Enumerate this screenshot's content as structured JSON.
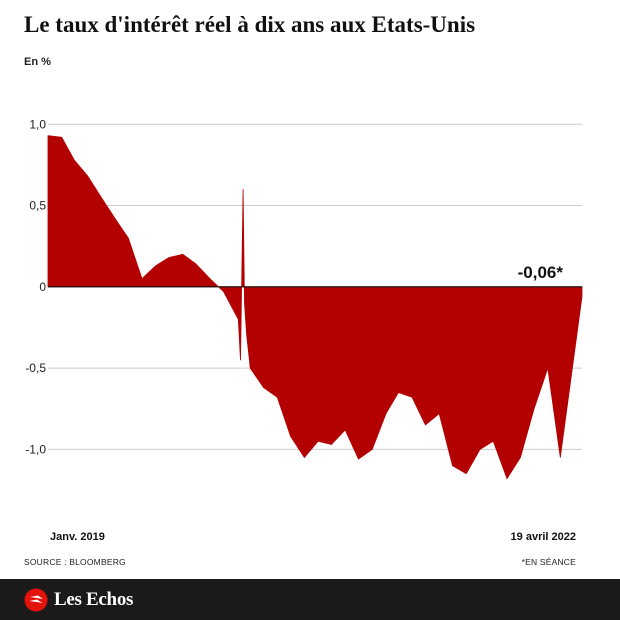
{
  "title": "Le taux d'intérêt réel à dix ans aux Etats-Unis",
  "unit_label": "En %",
  "x_axis": {
    "first_label": "Janv. 2019",
    "last_label": "19 avril 2022"
  },
  "source": "SOURCE : BLOOMBERG",
  "footnote": "*EN SÉANCE",
  "brand": {
    "name": "Les Echos",
    "icon": "les-echos-logo-icon"
  },
  "colors": {
    "area": "#b30000",
    "grid": "#cccccc",
    "baseline": "#111111",
    "footer": "#1a1a1a"
  },
  "chart_data": {
    "type": "area",
    "ylabel": "En %",
    "ylim": [
      -1.25,
      1.1
    ],
    "yticks": [
      {
        "value": 1.0,
        "label": "1,0"
      },
      {
        "value": 0.5,
        "label": "0,5"
      },
      {
        "value": 0,
        "label": "0"
      },
      {
        "value": -0.5,
        "label": "-0,5"
      },
      {
        "value": -1.0,
        "label": "-1,0"
      }
    ],
    "x_start": "2019-01",
    "x_end": "2022-04-19",
    "last_value_label": "-0,06*",
    "series": [
      {
        "x": [
          "2019-01",
          "2019-02",
          "2019-03",
          "2019-04",
          "2019-05",
          "2019-06",
          "2019-07",
          "2019-08",
          "2019-09",
          "2019-10",
          "2019-11",
          "2019-12",
          "2020-01",
          "2020-02",
          "2020-03-05",
          "2020-03-10",
          "2020-03-16",
          "2020-03-19",
          "2020-03-24",
          "2020-03-30",
          "2020-04",
          "2020-05",
          "2020-06",
          "2020-07",
          "2020-08",
          "2020-09",
          "2020-10",
          "2020-11",
          "2020-12",
          "2021-01",
          "2021-02",
          "2021-03",
          "2021-04",
          "2021-05",
          "2021-06",
          "2021-07",
          "2021-08",
          "2021-09",
          "2021-10",
          "2021-11",
          "2021-12",
          "2022-01",
          "2022-02",
          "2022-03",
          "2022-04-19"
        ],
        "values": [
          0.93,
          0.92,
          0.78,
          0.68,
          0.55,
          0.42,
          0.3,
          0.05,
          0.13,
          0.18,
          0.2,
          0.14,
          0.05,
          -0.03,
          -0.2,
          -0.45,
          0.6,
          -0.1,
          -0.3,
          -0.45,
          -0.5,
          -0.62,
          -0.68,
          -0.92,
          -1.05,
          -0.95,
          -0.97,
          -0.88,
          -1.06,
          -1.0,
          -0.78,
          -0.65,
          -0.68,
          -0.85,
          -0.78,
          -1.1,
          -1.15,
          -1.0,
          -0.95,
          -1.18,
          -1.05,
          -0.75,
          -0.5,
          -1.05,
          -0.06
        ]
      }
    ]
  }
}
